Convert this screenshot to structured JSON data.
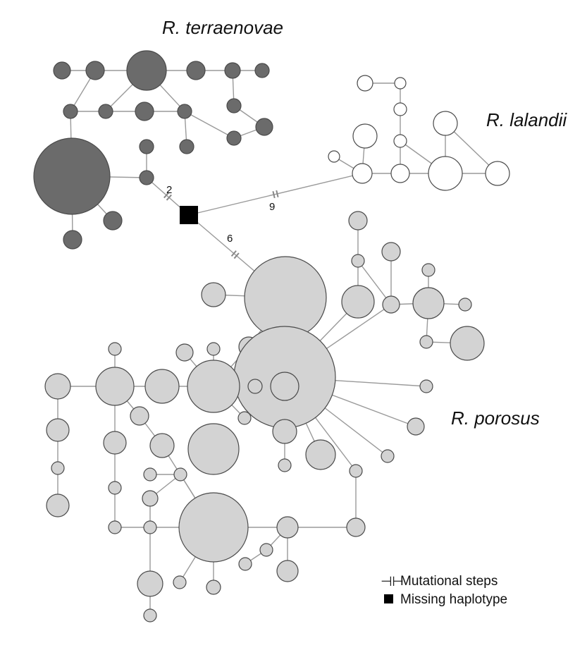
{
  "labels": {
    "terraenovae": "R. terraenovae",
    "lalandii": "R. lalandii",
    "porosus": "R. porosus"
  },
  "legend": {
    "mutational_steps_symbol": "⊣⊢",
    "mutational_steps": "Mutational steps",
    "missing_haplotype": "Missing haplotype"
  },
  "step_labels": {
    "terraenovae_link": "2",
    "lalandii_link": "9",
    "porosus_link": "6"
  },
  "colors": {
    "terraenovae": "#6b6b6b",
    "lalandii": "#ffffff",
    "porosus": "#d3d3d3",
    "missing_haplotype": "#000000"
  }
}
